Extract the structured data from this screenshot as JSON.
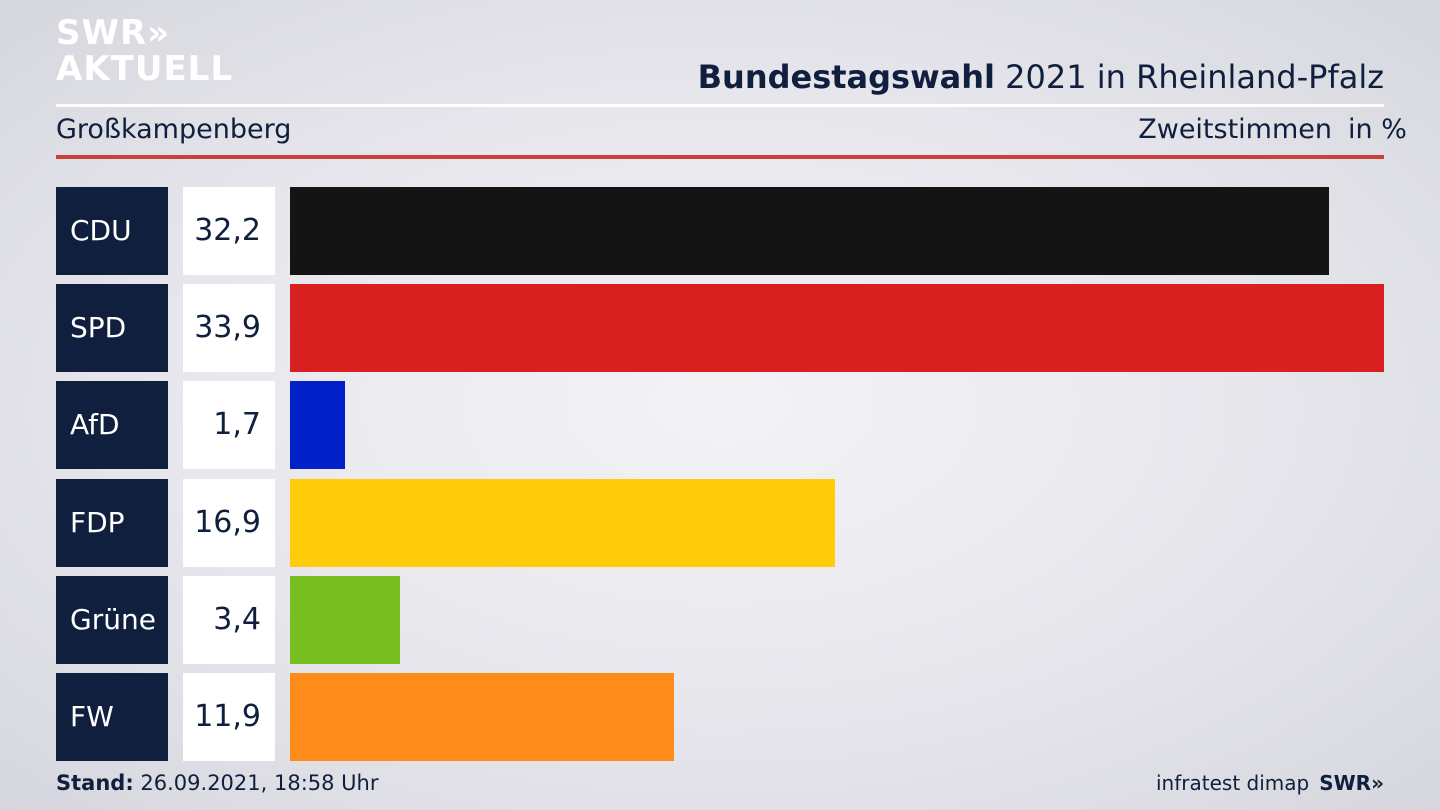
{
  "header": {
    "logo_line1": "SWR»",
    "logo_line2": "AKTUELL",
    "title_bold": "Bundestagswahl",
    "title_rest": " 2021 in Rheinland-Pfalz",
    "region": "Großkampenberg",
    "metric": "Zweitstimmen",
    "unit": "in %"
  },
  "chart_data": {
    "type": "bar",
    "orientation": "horizontal",
    "categories": [
      "CDU",
      "SPD",
      "AfD",
      "FDP",
      "Grüne",
      "FW"
    ],
    "values": [
      32.2,
      33.9,
      1.7,
      16.9,
      3.4,
      11.9
    ],
    "value_labels": [
      "32,2",
      "33,9",
      "1,7",
      "16,9",
      "3,4",
      "11,9"
    ],
    "colors": [
      "#141414",
      "#d7201f",
      "#0021c8",
      "#ffcc0a",
      "#78be20",
      "#ff8c1a"
    ],
    "title": "Bundestagswahl 2021 in Rheinland-Pfalz",
    "xlabel": "",
    "ylabel": "",
    "xlim": [
      0,
      33.9
    ],
    "grid": false,
    "legend": "none"
  },
  "footer": {
    "stand_label": "Stand:",
    "stand_value": " 26.09.2021, 18:58 Uhr",
    "source": "infratest dimap",
    "brand": "SWR»"
  }
}
